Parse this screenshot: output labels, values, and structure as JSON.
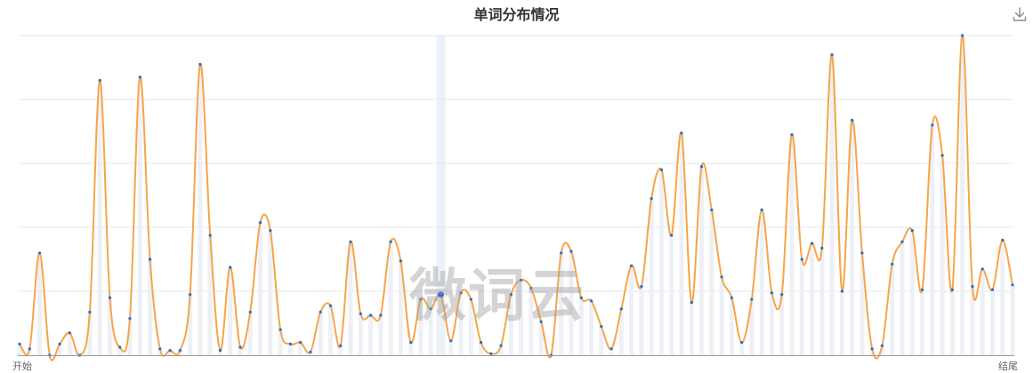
{
  "title": "单词分布情况",
  "watermark": "微词云",
  "icons": {
    "download": "download-icon"
  },
  "colors": {
    "line": "#f5a54a",
    "point": "#1f6fd6",
    "bar": "#eef0f6",
    "grid": "#e4e7ef",
    "highlight": "#dfe6f5"
  },
  "chart_data": {
    "type": "line",
    "smooth": true,
    "title": "单词分布情况",
    "xlabel": "",
    "ylabel": "",
    "x_start_label": "开始",
    "x_end_label": "结尾",
    "ylim": [
      0,
      100
    ],
    "grid": true,
    "highlighted_index": 42,
    "values": [
      3.5,
      2,
      32,
      0,
      3.5,
      7,
      0,
      13.5,
      86,
      18,
      2.5,
      11.5,
      87,
      30,
      2,
      1.5,
      1.5,
      19,
      91,
      37.5,
      1.5,
      27.5,
      2.5,
      13.5,
      41.5,
      39,
      8,
      3.5,
      4,
      1,
      13.5,
      15.5,
      3,
      35.5,
      13,
      12.5,
      12.5,
      35.5,
      29.5,
      4,
      17.5,
      14.5,
      19,
      4.5,
      19.5,
      17.5,
      4,
      0.5,
      3,
      19,
      23.5,
      21,
      10.5,
      0,
      32,
      32.5,
      18,
      17,
      9,
      2,
      14.5,
      28,
      21.5,
      49,
      58,
      37.5,
      69.5,
      16.5,
      59,
      45.5,
      24.5,
      18,
      4,
      17.5,
      45.5,
      19.5,
      19,
      69,
      30,
      35,
      33.5,
      94,
      20,
      73.5,
      32,
      2,
      3,
      28.5,
      35.5,
      39,
      20.5,
      72,
      62.5,
      20.5,
      100,
      21.5,
      27,
      20.5,
      36,
      22
    ]
  }
}
